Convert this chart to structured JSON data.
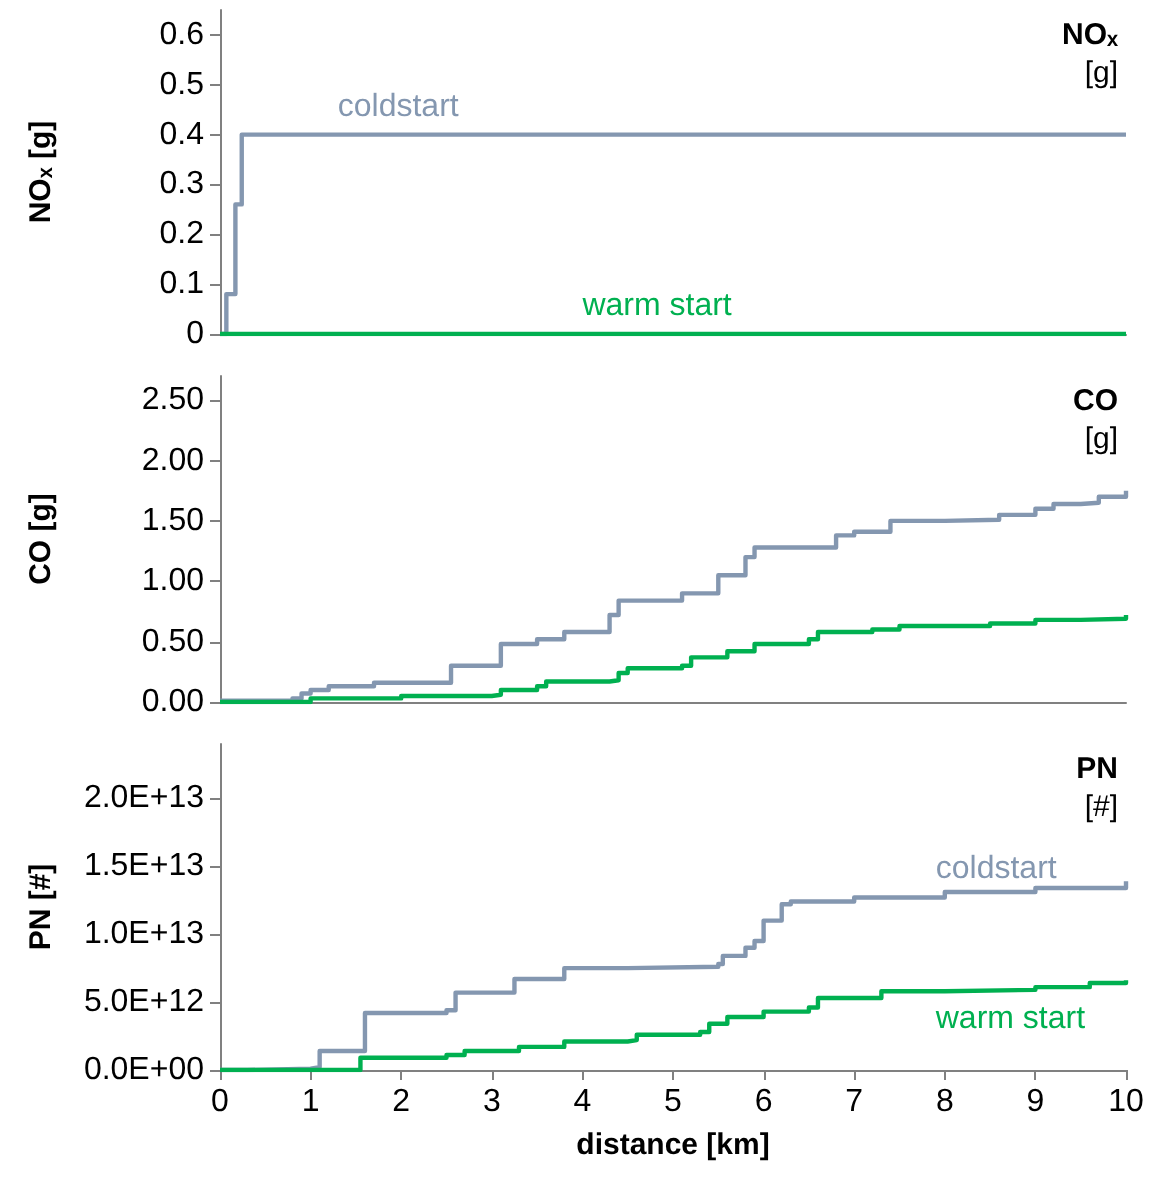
{
  "chart_data": [
    {
      "type": "step",
      "title": "NOₓ",
      "subtitle": "[g]",
      "ylabel": "NOₓ [g]",
      "xlim": [
        0,
        10
      ],
      "xticks": [
        0,
        1,
        2,
        3,
        4,
        5,
        6,
        7,
        8,
        9,
        10
      ],
      "ylim": [
        0,
        0.65
      ],
      "yticks": [
        0,
        0.1,
        0.2,
        0.3,
        0.4,
        0.5,
        0.6
      ],
      "tick_labels": "y",
      "grid": false,
      "series": [
        {
          "name": "coldstart",
          "color": "#8497b0",
          "x": [
            0,
            0.07,
            0.17,
            0.24,
            10
          ],
          "values": [
            0,
            0.08,
            0.26,
            0.4,
            0.4
          ]
        },
        {
          "name": "warm start",
          "color": "#00b050",
          "x": [
            0,
            10
          ],
          "values": [
            0,
            0
          ]
        }
      ]
    },
    {
      "type": "step",
      "title": "CO",
      "subtitle": "[g]",
      "ylabel": "CO [g]",
      "xlim": [
        0,
        10
      ],
      "xticks": [
        0,
        1,
        2,
        3,
        4,
        5,
        6,
        7,
        8,
        9,
        10
      ],
      "ylim": [
        0,
        2.7
      ],
      "yticks": [
        {
          "value": 0,
          "label": "0.00"
        },
        {
          "value": 0.5,
          "label": "0.50"
        },
        {
          "value": 1,
          "label": "1.00"
        },
        {
          "value": 1.5,
          "label": "1.50"
        },
        {
          "value": 2,
          "label": "2.00"
        },
        {
          "value": 2.5,
          "label": "2.50"
        }
      ],
      "tick_labels": "y",
      "grid": false,
      "series": [
        {
          "color": "#8497b0",
          "x": [
            0,
            0.8,
            0.9,
            1.0,
            1.2,
            1.7,
            2.55,
            3.1,
            3.5,
            3.8,
            4.3,
            4.4,
            5.1,
            5.5,
            5.8,
            5.9,
            6.8,
            7.0,
            7.4,
            8.0,
            8.6,
            9.0,
            9.2,
            9.5,
            9.7,
            10
          ],
          "values": [
            0.01,
            0.03,
            0.07,
            0.1,
            0.13,
            0.16,
            0.3,
            0.48,
            0.52,
            0.58,
            0.72,
            0.84,
            0.9,
            1.05,
            1.2,
            1.28,
            1.38,
            1.41,
            1.5,
            1.51,
            1.55,
            1.6,
            1.64,
            1.65,
            1.7,
            1.75
          ]
        },
        {
          "color": "#00b050",
          "x": [
            0,
            1.0,
            2.0,
            3.0,
            3.1,
            3.5,
            3.6,
            4.3,
            4.4,
            4.5,
            5.1,
            5.2,
            5.6,
            5.9,
            6.5,
            6.6,
            7.2,
            7.5,
            8.5,
            9.0,
            9.5,
            10
          ],
          "values": [
            0,
            0.03,
            0.05,
            0.06,
            0.1,
            0.13,
            0.17,
            0.18,
            0.24,
            0.28,
            0.3,
            0.37,
            0.42,
            0.48,
            0.52,
            0.58,
            0.6,
            0.63,
            0.65,
            0.68,
            0.69,
            0.72
          ]
        }
      ]
    },
    {
      "type": "step",
      "title": "PN",
      "subtitle": "[#]",
      "ylabel": "PN [#]",
      "xlabel": "distance [km]",
      "xlim": [
        0,
        10
      ],
      "xticks": [
        0,
        1,
        2,
        3,
        4,
        5,
        6,
        7,
        8,
        9,
        10
      ],
      "ylim": [
        0,
        24000000000000.0
      ],
      "yticks": [
        {
          "value": 0,
          "label": "0.0E+00"
        },
        {
          "value": 5000000000000.0,
          "label": "5.0E+12"
        },
        {
          "value": 10000000000000.0,
          "label": "1.0E+13"
        },
        {
          "value": 15000000000000.0,
          "label": "1.5E+13"
        },
        {
          "value": 20000000000000.0,
          "label": "2.0E+13"
        }
      ],
      "grid": false,
      "series": [
        {
          "name": "coldstart",
          "color": "#8497b0",
          "x": [
            0,
            0.3,
            1.0,
            1.1,
            1.6,
            2.5,
            2.6,
            3.25,
            3.8,
            4.5,
            5.5,
            5.55,
            5.8,
            5.9,
            6.0,
            6.2,
            6.3,
            7.0,
            8.0,
            9.0,
            10
          ],
          "values": [
            0,
            100000000000.0,
            200000000000.0,
            1400000000000.0,
            4200000000000.0,
            4400000000000.0,
            5700000000000.0,
            6700000000000.0,
            7500000000000.0,
            7600000000000.0,
            7800000000000.0,
            8400000000000.0,
            9000000000000.0,
            9500000000000.0,
            11000000000000.0,
            12200000000000.0,
            12400000000000.0,
            12700000000000.0,
            13100000000000.0,
            13400000000000.0,
            13900000000000.0
          ]
        },
        {
          "name": "warm start",
          "color": "#00b050",
          "x": [
            0,
            1.5,
            1.55,
            2.5,
            2.7,
            3.3,
            3.8,
            4.5,
            4.6,
            5.3,
            5.4,
            5.6,
            6.0,
            6.5,
            6.6,
            7.3,
            8.0,
            9.0,
            9.6,
            10
          ],
          "values": [
            0,
            0,
            900000000000.0,
            1100000000000.0,
            1400000000000.0,
            1700000000000.0,
            2100000000000.0,
            2200000000000.0,
            2600000000000.0,
            2800000000000.0,
            3400000000000.0,
            3900000000000.0,
            4300000000000.0,
            4600000000000.0,
            5300000000000.0,
            5800000000000.0,
            5900000000000.0,
            6100000000000.0,
            6400000000000.0,
            6600000000000.0
          ]
        }
      ]
    }
  ]
}
